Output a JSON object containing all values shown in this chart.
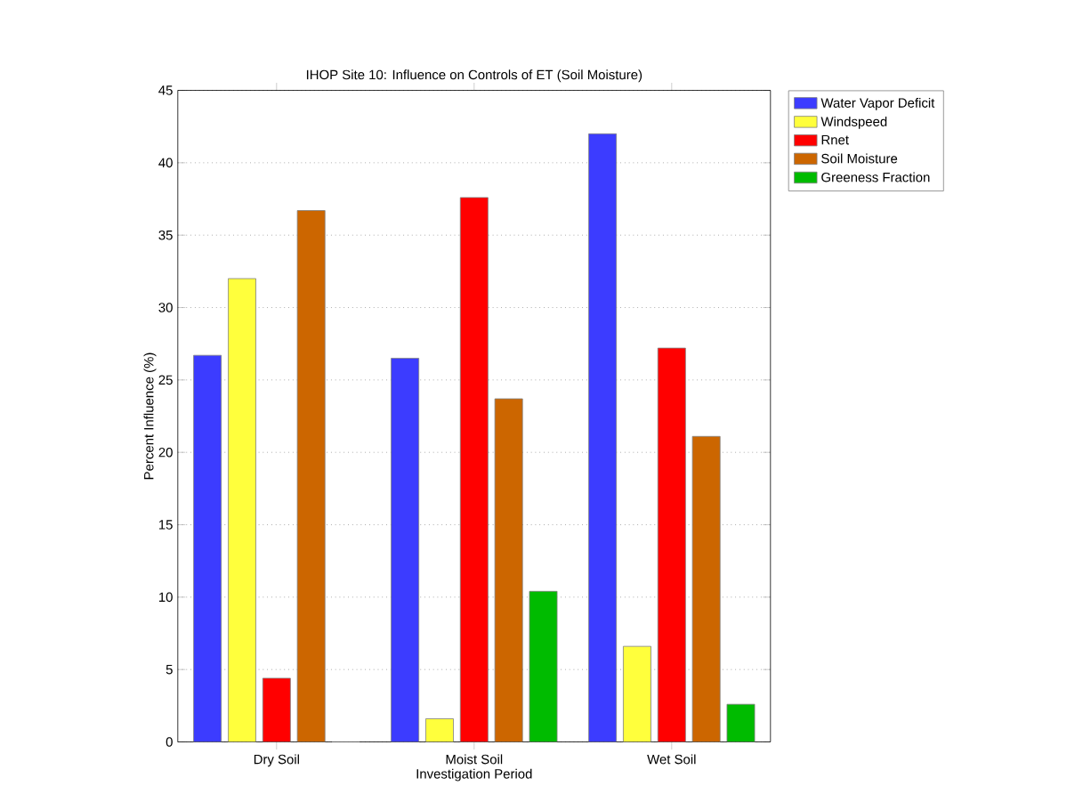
{
  "chart_data": {
    "type": "bar",
    "title": "IHOP Site 10: Influence on Controls of ET (Soil Moisture)",
    "xlabel": "Investigation Period",
    "ylabel": "Percent Influence (%)",
    "categories": [
      "Dry Soil",
      "Moist Soil",
      "Wet Soil"
    ],
    "series": [
      {
        "name": "Water Vapor Deficit",
        "color": "#3c3cff",
        "values": [
          26.7,
          26.5,
          42.0
        ]
      },
      {
        "name": "Windspeed",
        "color": "#ffff3c",
        "values": [
          32.0,
          1.6,
          6.6
        ]
      },
      {
        "name": "Rnet",
        "color": "#ff0000",
        "values": [
          4.4,
          37.6,
          27.2
        ]
      },
      {
        "name": "Soil Moisture",
        "color": "#cc6600",
        "values": [
          36.7,
          23.7,
          21.1
        ]
      },
      {
        "name": "Greeness Fraction",
        "color": "#00bb00",
        "values": [
          0,
          10.4,
          2.6
        ]
      }
    ],
    "ylim": [
      0,
      45
    ],
    "yticks": [
      0,
      5,
      10,
      15,
      20,
      25,
      30,
      35,
      40,
      45
    ],
    "grid": "y",
    "legend": "top right"
  }
}
